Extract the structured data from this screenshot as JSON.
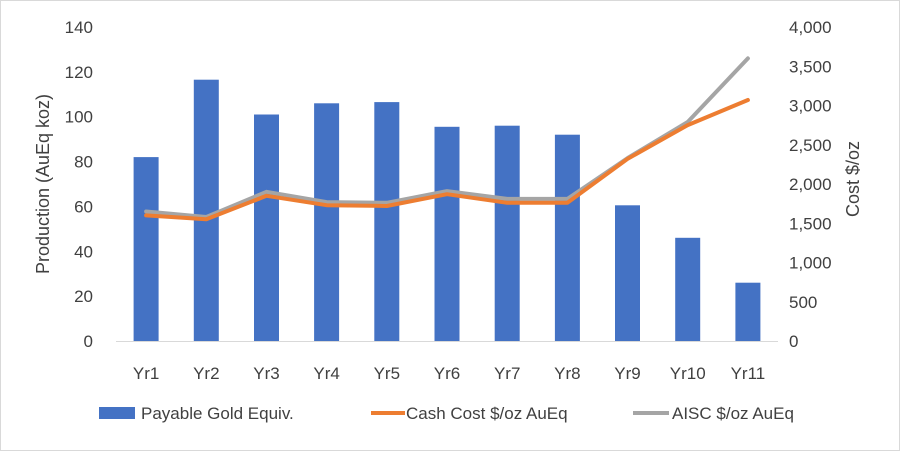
{
  "chart_data": {
    "type": "bar",
    "categories": [
      "Yr1",
      "Yr2",
      "Yr3",
      "Yr4",
      "Yr5",
      "Yr6",
      "Yr7",
      "Yr8",
      "Yr9",
      "Yr10",
      "Yr11"
    ],
    "series": [
      {
        "name": "Payable Gold Equiv.",
        "type": "bar",
        "axis": "left",
        "color": "#4472c4",
        "values": [
          82,
          116.5,
          101,
          106,
          106.5,
          95.5,
          96,
          92,
          60.5,
          46,
          26
        ]
      },
      {
        "name": "Cash Cost $/oz AuEq",
        "type": "line",
        "axis": "right",
        "color": "#ed7d31",
        "values": [
          1600,
          1550,
          1850,
          1730,
          1720,
          1870,
          1760,
          1760,
          2320,
          2750,
          3070
        ]
      },
      {
        "name": "AISC $/oz AuEq",
        "type": "line",
        "axis": "right",
        "color": "#a5a5a5",
        "values": [
          1650,
          1580,
          1900,
          1770,
          1760,
          1910,
          1810,
          1810,
          2330,
          2790,
          3600
        ]
      }
    ],
    "y_left": {
      "label": "Production (AuEq koz)",
      "range": [
        0,
        140
      ],
      "ticks": [
        0,
        20,
        40,
        60,
        80,
        100,
        120,
        140
      ],
      "tick_labels": [
        "0",
        "20",
        "40",
        "60",
        "80",
        "100",
        "120",
        "140"
      ]
    },
    "y_right": {
      "label": "Cost $/oz",
      "range": [
        0,
        4000
      ],
      "ticks": [
        0,
        500,
        1000,
        1500,
        2000,
        2500,
        3000,
        3500,
        4000
      ],
      "tick_labels": [
        "0",
        "500",
        "1,000",
        "1,500",
        "2,000",
        "2,500",
        "3,000",
        "3,500",
        "4,000"
      ]
    },
    "grid": false,
    "legend": "bottom"
  }
}
